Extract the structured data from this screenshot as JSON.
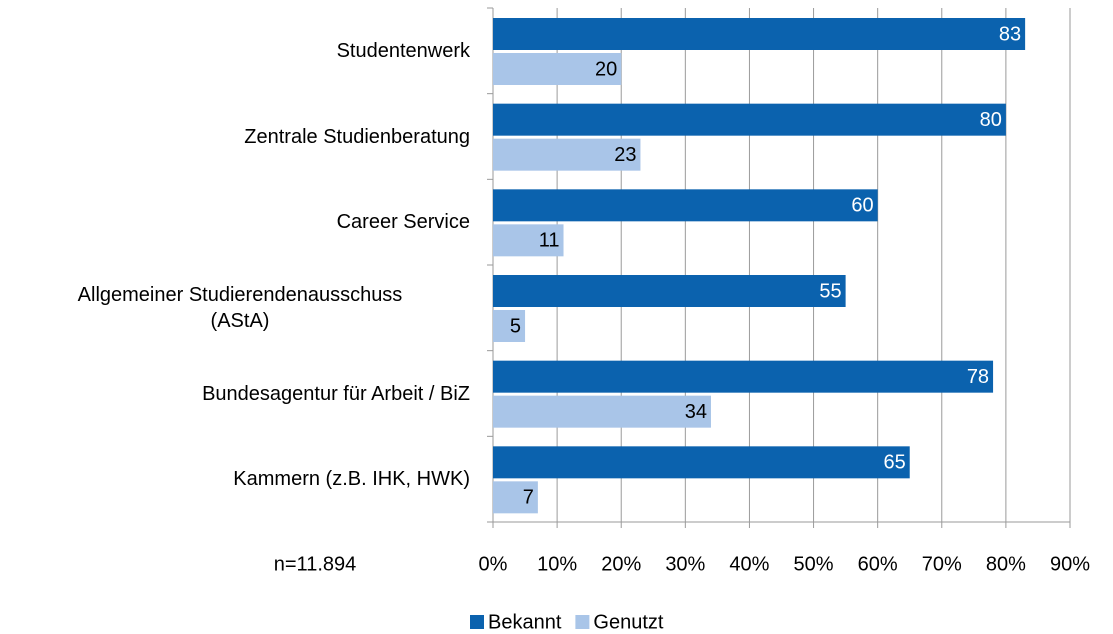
{
  "chart_data": {
    "type": "bar",
    "orientation": "horizontal",
    "categories": [
      "Studentenwerk",
      "Zentrale Studienberatung",
      "Career Service",
      "Allgemeiner Studierendenausschuss\n(AStA)",
      "Bundesagentur für Arbeit / BiZ",
      "Kammern (z.B. IHK, HWK)"
    ],
    "series": [
      {
        "name": "Bekannt",
        "color": "#0b62ae",
        "values": [
          83,
          80,
          60,
          55,
          78,
          65
        ]
      },
      {
        "name": "Genutzt",
        "color": "#a9c5e8",
        "values": [
          20,
          23,
          11,
          5,
          34,
          7
        ]
      }
    ],
    "xlim": [
      0,
      90
    ],
    "xticks": [
      {
        "value": 0,
        "label": "0%"
      },
      {
        "value": 10,
        "label": "10%"
      },
      {
        "value": 20,
        "label": "20%"
      },
      {
        "value": 30,
        "label": "30%"
      },
      {
        "value": 40,
        "label": "40%"
      },
      {
        "value": 50,
        "label": "50%"
      },
      {
        "value": 60,
        "label": "60%"
      },
      {
        "value": 70,
        "label": "70%"
      },
      {
        "value": 80,
        "label": "80%"
      },
      {
        "value": 90,
        "label": "90%"
      }
    ],
    "grid": true,
    "annotation": "n=11.894",
    "legend": "bottom"
  }
}
